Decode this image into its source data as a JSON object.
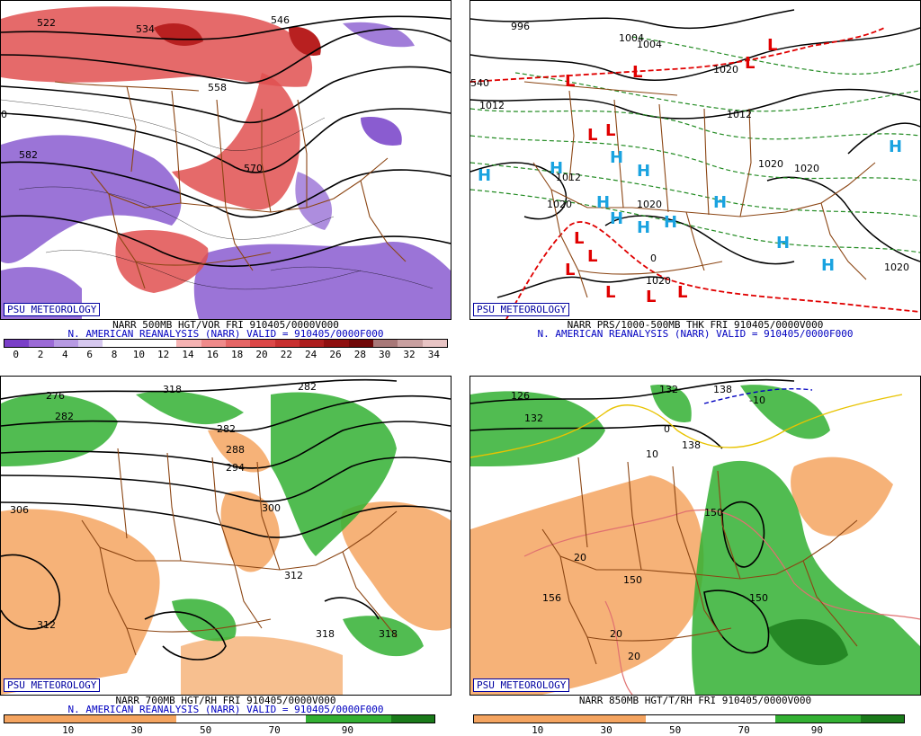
{
  "branding": "PSU METEOROLOGY",
  "panels": [
    {
      "id": "p1",
      "line1": "NARR 500MB HGT/VOR FRI 910405/0000V000",
      "line2": "N. AMERICAN REANALYSIS (NARR) VALID = 910405/0000F000",
      "colorbar_ticks": [
        "0",
        "2",
        "4",
        "6",
        "8",
        "10",
        "12",
        "14",
        "16",
        "18",
        "20",
        "22",
        "24",
        "26",
        "28",
        "30",
        "32",
        "34"
      ],
      "colorbar_colors": [
        "#7a3fc8",
        "#9b6ad6",
        "#b79ae3",
        "#d6c8ef",
        "#ffffff",
        "#ffffff",
        "#ffffff",
        "#f6b3b3",
        "#ef8a8a",
        "#e56565",
        "#dc4848",
        "#c83030",
        "#ad1e1e",
        "#8f1010",
        "#700808",
        "#a87878",
        "#c9a0a0",
        "#e8c4c4"
      ],
      "labels": [
        "522",
        "534",
        "558",
        "570",
        "582",
        "0",
        "546"
      ]
    },
    {
      "id": "p2",
      "line1": "NARR PRS/1000-500MB THK FRI 910405/0000V000",
      "line2": "N. AMERICAN REANALYSIS (NARR) VALID = 910405/0000F000",
      "labels": [
        "996",
        "1004",
        "1004",
        "1012",
        "1012",
        "1012",
        "1020",
        "1020",
        "1020",
        "1020",
        "1020",
        "1020",
        "1020",
        "540",
        "0"
      ]
    },
    {
      "id": "p3",
      "line1": "NARR 700MB HGT/RH FRI 910405/0000V000",
      "line2": "N. AMERICAN REANALYSIS (NARR) VALID = 910405/0000F000",
      "colorbar_ticks": [
        "10",
        "30",
        "50",
        "70",
        "90"
      ],
      "labels": [
        "276",
        "282",
        "282",
        "288",
        "294",
        "300",
        "306",
        "312",
        "312",
        "318",
        "318",
        "318",
        "282"
      ]
    },
    {
      "id": "p4",
      "line1": "NARR 850MB HGT/T/RH FRI 910405/0000V000",
      "colorbar_ticks": [
        "10",
        "30",
        "50",
        "70",
        "90"
      ],
      "labels": [
        "126",
        "132",
        "132",
        "138",
        "138",
        "150",
        "150",
        "150",
        "156",
        "20",
        "20",
        "20",
        "10",
        "-10",
        "0"
      ]
    }
  ],
  "colors": {
    "psu_blue": "#0000a0",
    "valid_blue": "#0000c0",
    "rh_orange": "#f4a460",
    "rh_green": "#33b033",
    "vor_red": "#e05050",
    "vor_purple": "#8a5cd0",
    "border_brown": "#8b4513",
    "low_red": "#e00000",
    "high_cyan": "#1aa3e0"
  }
}
